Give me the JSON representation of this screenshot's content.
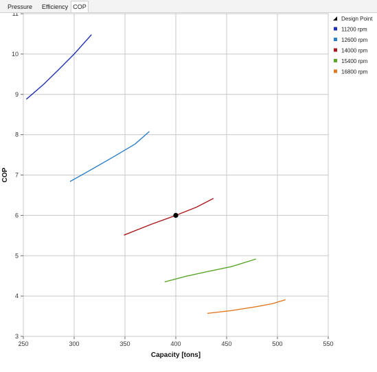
{
  "tabs": [
    {
      "label": "Pressure Ratio",
      "active": false
    },
    {
      "label": "Efficiency",
      "active": false
    },
    {
      "label": "COP",
      "active": true
    }
  ],
  "chart_data": {
    "type": "line",
    "title": "",
    "xlabel": "Capacity  [tons]",
    "ylabel": "COP",
    "xlim": [
      250,
      550
    ],
    "ylim": [
      3,
      11
    ],
    "xticks": [
      250,
      300,
      350,
      400,
      450,
      500,
      550
    ],
    "yticks": [
      3,
      4,
      5,
      6,
      7,
      8,
      9,
      10,
      11
    ],
    "grid": true,
    "legend_position": "right",
    "design_point": {
      "name": "Design Point",
      "x": 400,
      "y": 6.0,
      "color": "#000000"
    },
    "series": [
      {
        "name": "11200 rpm",
        "color": "#1f2fb4",
        "points": [
          [
            253,
            8.88
          ],
          [
            270,
            9.25
          ],
          [
            285,
            9.62
          ],
          [
            300,
            10.0
          ],
          [
            317,
            10.48
          ]
        ]
      },
      {
        "name": "12600 rpm",
        "color": "#2a7fc6",
        "points": [
          [
            296,
            6.84
          ],
          [
            320,
            7.18
          ],
          [
            340,
            7.47
          ],
          [
            360,
            7.77
          ],
          [
            374,
            8.08
          ]
        ]
      },
      {
        "name": "14000 rpm",
        "color": "#a8181c",
        "points": [
          [
            349,
            5.51
          ],
          [
            375,
            5.77
          ],
          [
            400,
            6.0
          ],
          [
            420,
            6.2
          ],
          [
            437,
            6.42
          ]
        ]
      },
      {
        "name": "15400 rpm",
        "color": "#5aa62a",
        "points": [
          [
            389,
            4.35
          ],
          [
            410,
            4.49
          ],
          [
            430,
            4.6
          ],
          [
            455,
            4.73
          ],
          [
            479,
            4.92
          ]
        ]
      },
      {
        "name": "16800 rpm",
        "color": "#df7a23",
        "points": [
          [
            431,
            3.57
          ],
          [
            455,
            3.64
          ],
          [
            480,
            3.74
          ],
          [
            495,
            3.81
          ],
          [
            508,
            3.91
          ]
        ]
      }
    ]
  }
}
